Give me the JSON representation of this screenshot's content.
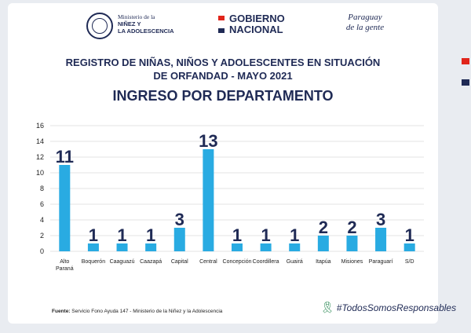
{
  "header": {
    "ministry_line1": "Ministerio de la",
    "ministry_line2": "NIÑEZ Y",
    "ministry_line3": "LA ADOLESCENCIA",
    "gov_line1": "GOBIERNO",
    "gov_line2": "NACIONAL",
    "slogan_line1": "Paraguay",
    "slogan_line2": "de la gente"
  },
  "colors": {
    "bar": "#29abe2",
    "navy": "#1f2a55",
    "red": "#e1251b",
    "grid": "#c8c8c8"
  },
  "chart_data": {
    "type": "bar",
    "title_line1": "REGISTRO DE NIÑAS, NIÑOS Y ADOLESCENTES EN SITUACIÓN",
    "title_line2": "DE ORFANDAD - MAYO 2021",
    "subtitle": "INGRESO POR DEPARTAMENTO",
    "categories": [
      [
        "Alto",
        "Paraná"
      ],
      [
        "Boquerón"
      ],
      [
        "Caaguazú"
      ],
      [
        "Caazapá"
      ],
      [
        "Capital"
      ],
      [
        "Central"
      ],
      [
        "Concepción"
      ],
      [
        "Coordillera"
      ],
      [
        "Guairá"
      ],
      [
        "Itapúa"
      ],
      [
        "Misiones"
      ],
      [
        "Paraguarí"
      ],
      [
        "S/D"
      ]
    ],
    "values": [
      11,
      1,
      1,
      1,
      3,
      13,
      1,
      1,
      1,
      2,
      2,
      3,
      1
    ],
    "ylim": [
      0,
      16
    ],
    "yticks": [
      0,
      2,
      4,
      6,
      8,
      10,
      12,
      14,
      16
    ],
    "grid": true
  },
  "footer": {
    "source_label": "Fuente:",
    "source_text": "Servicio Fono Ayuda 147 - Ministerio de la Niñez y la Adolescencia",
    "hashtag": "#TodosSomosResponsables"
  }
}
